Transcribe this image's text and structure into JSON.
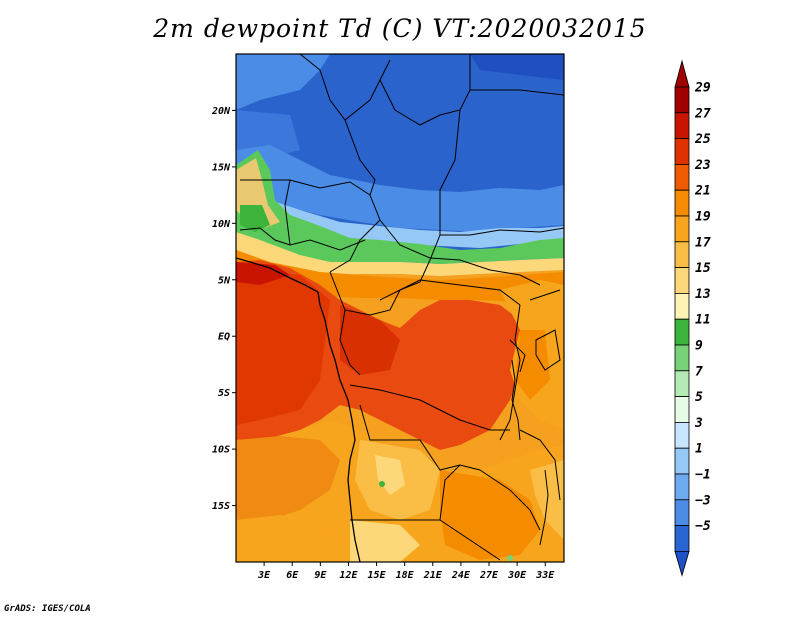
{
  "title": "2m dewpoint Td (C) VT:2020032015",
  "credit": "GrADS: IGES/COLA",
  "map": {
    "lon_range": [
      0,
      35
    ],
    "lat_range": [
      -20,
      25
    ],
    "lat_ticks": [
      {
        "value": 20,
        "label": "20N"
      },
      {
        "value": 15,
        "label": "15N"
      },
      {
        "value": 10,
        "label": "10N"
      },
      {
        "value": 5,
        "label": "5N"
      },
      {
        "value": 0,
        "label": "EQ"
      },
      {
        "value": -5,
        "label": "5S"
      },
      {
        "value": -10,
        "label": "10S"
      },
      {
        "value": -15,
        "label": "15S"
      }
    ],
    "lon_ticks": [
      {
        "value": 3,
        "label": "3E"
      },
      {
        "value": 6,
        "label": "6E"
      },
      {
        "value": 9,
        "label": "9E"
      },
      {
        "value": 12,
        "label": "12E"
      },
      {
        "value": 15,
        "label": "15E"
      },
      {
        "value": 18,
        "label": "18E"
      },
      {
        "value": 21,
        "label": "21E"
      },
      {
        "value": 24,
        "label": "24E"
      },
      {
        "value": 27,
        "label": "27E"
      },
      {
        "value": 30,
        "label": "30E"
      },
      {
        "value": 33,
        "label": "33E"
      }
    ]
  },
  "colorbar": {
    "levels": [
      {
        "label": "29",
        "color": "#a00000"
      },
      {
        "label": "27",
        "color": "#c81400"
      },
      {
        "label": "25",
        "color": "#e03200"
      },
      {
        "label": "23",
        "color": "#f05a00"
      },
      {
        "label": "21",
        "color": "#f58c00"
      },
      {
        "label": "19",
        "color": "#f8a51e"
      },
      {
        "label": "17",
        "color": "#fabe46"
      },
      {
        "label": "15",
        "color": "#fcd87a"
      },
      {
        "label": "13",
        "color": "#fdf3b4"
      },
      {
        "label": "11",
        "color": "#3cb43c"
      },
      {
        "label": "9",
        "color": "#78d278"
      },
      {
        "label": "7",
        "color": "#b4ebb4"
      },
      {
        "label": "5",
        "color": "#e6fae6"
      },
      {
        "label": "3",
        "color": "#c8e6ff"
      },
      {
        "label": "1",
        "color": "#96c8f5"
      },
      {
        "label": "−1",
        "color": "#6eaaf0"
      },
      {
        "label": "−3",
        "color": "#4b8ce6"
      },
      {
        "label": "−5",
        "color": "#2864d2"
      }
    ],
    "top_arrow_color": "#a00000",
    "bottom_arrow_color": "#1e50c8"
  }
}
